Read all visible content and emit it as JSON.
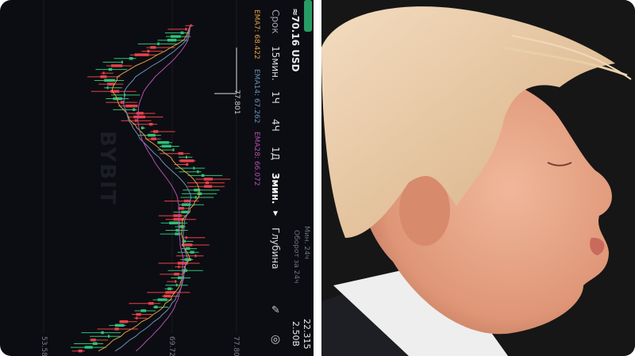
{
  "app": {
    "watermark": "BYBIT",
    "price_usd": "≈70.16 USD",
    "stats": {
      "low_label": "Мин. 24ч",
      "low_value": "22.315",
      "turnover_label": "Оборот за 24ч",
      "turnover_value": "2.50B"
    },
    "timeframes": {
      "label": "Срок",
      "items": [
        "15мин.",
        "1Ч",
        "4Ч",
        "1Д"
      ],
      "selected": "3мин. ▾"
    },
    "depth_label": "Глубина",
    "ema": [
      {
        "label": "EMA7: 68.422",
        "color": "#e0a040"
      },
      {
        "label": "EMA14: 67.262",
        "color": "#6a8fb8"
      },
      {
        "label": "EMA28: 66.072",
        "color": "#b24fb0"
      }
    ],
    "high_marker": "77.801",
    "icons": [
      "pencil-icon",
      "settings-icon"
    ]
  },
  "chart_data": {
    "type": "candlestick",
    "orientation": "rotated 90° clockwise",
    "price_ticks": [
      "53.58",
      "69.72",
      "77.80"
    ],
    "xlim": [
      53.58,
      77.8
    ],
    "colors": {
      "up": "#2fc17a",
      "down": "#e8424a"
    },
    "close_path": [
      72,
      70,
      66,
      62,
      61.5,
      63,
      65,
      66.5,
      68,
      70.5,
      72.5,
      74,
      73,
      71,
      70,
      71.5,
      72,
      71,
      70,
      69,
      67,
      64,
      61,
      59
    ]
  },
  "photo": {
    "subject": "profile portrait"
  }
}
